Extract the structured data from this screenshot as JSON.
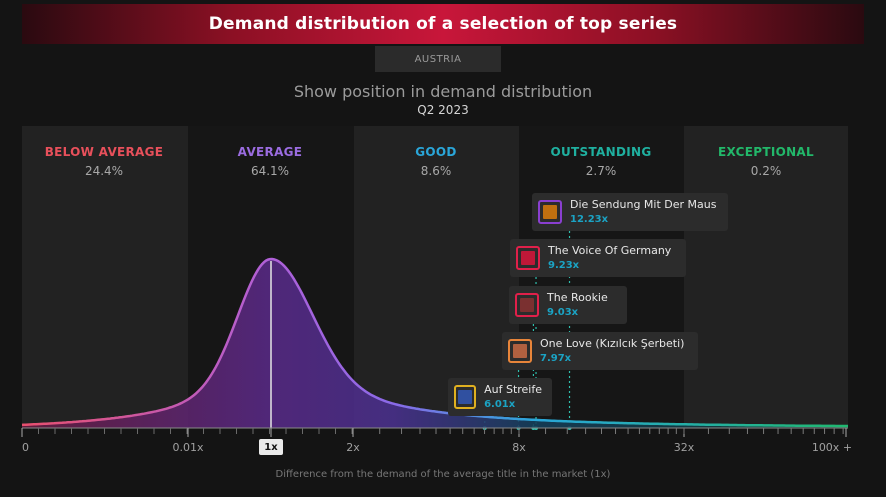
{
  "header": {
    "title": "Demand distribution of a selection of top series"
  },
  "filter": {
    "country": "AUSTRIA"
  },
  "subtitle": "Show position in demand distribution",
  "period": "Q2 2023",
  "zones": [
    {
      "label": "BELOW AVERAGE",
      "pct": "24.4%",
      "color": "#e8505b"
    },
    {
      "label": "AVERAGE",
      "pct": "64.1%",
      "color": "#9b6ce0"
    },
    {
      "label": "GOOD",
      "pct": "8.6%",
      "color": "#2aa6d9"
    },
    {
      "label": "OUTSTANDING",
      "pct": "2.7%",
      "color": "#1fb0a0"
    },
    {
      "label": "EXCEPTIONAL",
      "pct": "0.2%",
      "color": "#22b86a"
    }
  ],
  "chart_data": {
    "type": "area",
    "xlabel": "Difference from the demand of the average title in the market (1x)",
    "x_tick_labels": [
      "0",
      "0.01x",
      "1x",
      "2x",
      "8x",
      "32x",
      "100x +"
    ],
    "x_scale": "log",
    "grid": false,
    "series": [
      {
        "title": "Die Sendung Mit Der Maus",
        "value": 12.23,
        "label": "12.23x",
        "icon_color": "#8a3fd0"
      },
      {
        "title": "The Voice Of Germany",
        "value": 9.23,
        "label": "9.23x",
        "icon_color": "#e0204a"
      },
      {
        "title": "The Rookie",
        "value": 9.03,
        "label": "9.03x",
        "icon_color": "#e0204a"
      },
      {
        "title": "One Love (Kızılcık Şerbeti)",
        "value": 7.97,
        "label": "7.97x",
        "icon_color": "#e8853a"
      },
      {
        "title": "Auf Streife",
        "value": 6.01,
        "label": "6.01x",
        "icon_color": "#e0b020"
      }
    ]
  }
}
